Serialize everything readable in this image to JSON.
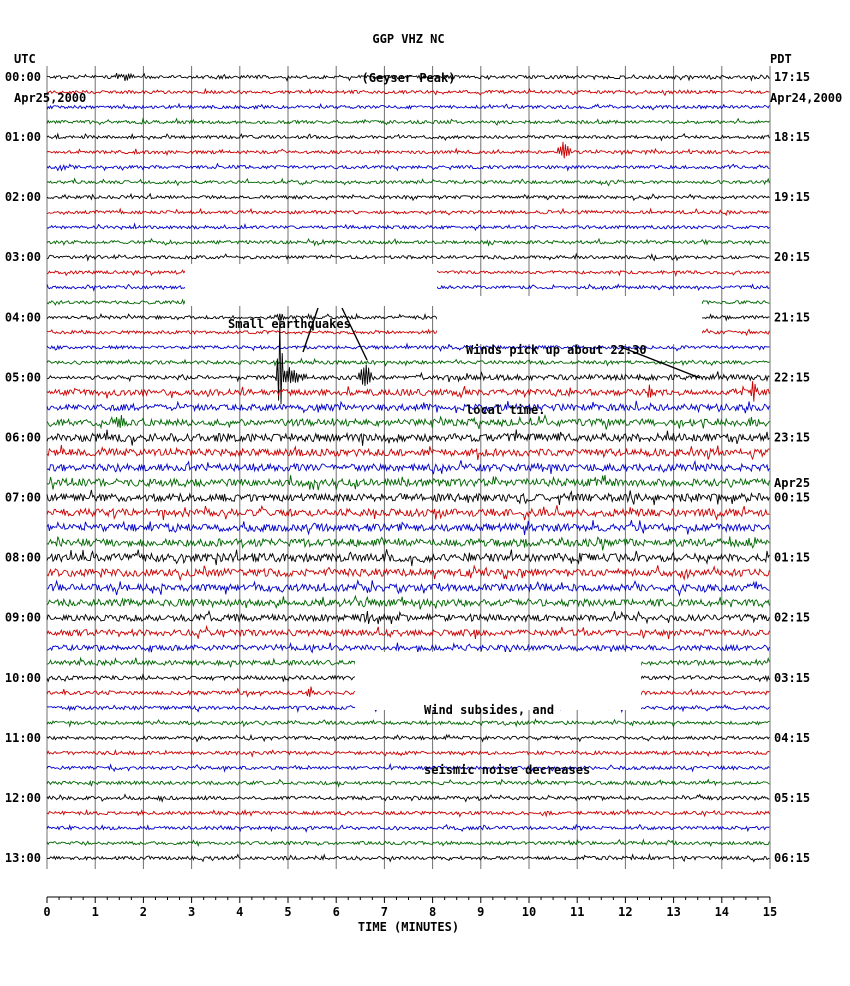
{
  "header": {
    "title": "GGP VHZ NC",
    "subtitle": "(Geyser Peak)",
    "left_tz": "UTC",
    "left_date": "Apr25,2000",
    "right_tz": "PDT",
    "right_date": "Apr24,2000"
  },
  "chart_data": {
    "type": "line",
    "subtype": "helicorder-seismogram",
    "title": "GGP VHZ NC (Geyser Peak)",
    "x_axis": {
      "label": "TIME (MINUTES)",
      "min": 0,
      "max": 15,
      "tick_labels": [
        "0",
        "1",
        "2",
        "3",
        "4",
        "5",
        "6",
        "7",
        "8",
        "9",
        "10",
        "11",
        "12",
        "13",
        "14",
        "15"
      ]
    },
    "trace_colors": [
      "#000000",
      "#cc0000",
      "#0000cc",
      "#006600"
    ],
    "traces_per_hour": 4,
    "minutes_per_trace": 15,
    "num_traces": 53,
    "left_time_labels": [
      "00:00",
      "01:00",
      "02:00",
      "03:00",
      "04:00",
      "05:00",
      "06:00",
      "07:00",
      "08:00",
      "09:00",
      "10:00",
      "11:00",
      "12:00",
      "13:00"
    ],
    "right_time_labels": [
      "17:15",
      "18:15",
      "19:15",
      "20:15",
      "21:15",
      "22:15",
      "23:15",
      "00:15",
      "01:15",
      "02:15",
      "03:15",
      "04:15",
      "05:15",
      "06:15"
    ],
    "right_date_label": "Apr25",
    "row_amplitudes": [
      [
        1.7,
        1.7
      ],
      [
        1.6,
        1.6
      ],
      [
        1.6,
        1.6
      ],
      [
        1.6,
        1.6
      ],
      [
        1.6,
        1.6
      ],
      [
        1.6,
        1.6
      ],
      [
        1.6,
        1.6
      ],
      [
        1.6,
        1.6
      ],
      [
        1.6,
        1.6
      ],
      [
        1.6,
        1.6
      ],
      [
        1.6,
        1.6
      ],
      [
        1.6,
        1.6
      ],
      [
        1.6,
        1.6
      ],
      [
        1.6,
        1.6
      ],
      [
        1.6,
        1.6
      ],
      [
        1.6,
        1.6
      ],
      [
        1.6,
        1.6
      ],
      [
        1.6,
        1.6
      ],
      [
        1.6,
        1.7
      ],
      [
        1.7,
        1.7
      ],
      [
        1.7,
        3.0
      ],
      [
        2.9,
        3.1
      ],
      [
        3.1,
        3.3
      ],
      [
        3.3,
        3.6
      ],
      [
        4.2,
        3.8
      ],
      [
        3.6,
        3.6
      ],
      [
        3.5,
        3.6
      ],
      [
        3.7,
        3.8
      ],
      [
        3.9,
        4.0
      ],
      [
        3.8,
        3.8
      ],
      [
        3.7,
        3.7
      ],
      [
        3.8,
        3.8
      ],
      [
        4.1,
        4.0
      ],
      [
        3.8,
        3.7
      ],
      [
        3.6,
        3.6
      ],
      [
        3.5,
        3.5
      ],
      [
        3.4,
        3.3
      ],
      [
        3.1,
        3.0
      ],
      [
        2.7,
        2.6
      ],
      [
        2.5,
        2.3
      ],
      [
        2.1,
        2.0
      ],
      [
        1.9,
        1.9
      ],
      [
        1.8,
        1.8
      ],
      [
        1.8,
        1.8
      ],
      [
        1.7,
        1.7
      ],
      [
        1.7,
        1.7
      ],
      [
        1.7,
        1.7
      ],
      [
        1.7,
        1.7
      ],
      [
        1.8,
        1.8
      ],
      [
        1.7,
        1.7
      ],
      [
        1.7,
        1.7
      ],
      [
        1.6,
        1.6
      ],
      [
        1.7,
        1.7
      ]
    ],
    "events": [
      {
        "row": 0,
        "minute": 1.65,
        "amp": 3.5,
        "width": 5
      },
      {
        "row": 5,
        "minute": 10.72,
        "amp": 9,
        "width": 4
      },
      {
        "row": 16,
        "minute": 4.85,
        "amp": 4.5,
        "width": 3
      },
      {
        "row": 16,
        "minute": 5.45,
        "amp": 3.5,
        "width": 3
      },
      {
        "row": 20,
        "minute": 4.83,
        "amp": 55,
        "width": 1.6
      },
      {
        "row": 20,
        "minute": 5.05,
        "amp": 9,
        "width": 7
      },
      {
        "row": 20,
        "minute": 6.6,
        "amp": 13,
        "width": 3.5
      },
      {
        "row": 21,
        "minute": 12.52,
        "amp": 7,
        "width": 2
      },
      {
        "row": 21,
        "minute": 14.65,
        "amp": 9,
        "width": 2.5
      },
      {
        "row": 23,
        "minute": 1.47,
        "amp": 6.5,
        "width": 4
      },
      {
        "row": 41,
        "minute": 5.45,
        "amp": 5,
        "width": 3
      }
    ],
    "annotations": [
      {
        "name": "small-earthquakes",
        "lines": [
          "Small earthquakes"
        ],
        "pointers": [
          [
            318,
            308,
            303,
            352
          ],
          [
            342,
            308,
            367,
            360
          ]
        ]
      },
      {
        "name": "wind-pickup",
        "lines": [
          "Winds pick up about 22:30",
          "local time."
        ],
        "pointers": [
          [
            621,
            347,
            700,
            378
          ]
        ]
      },
      {
        "name": "wind-subsides",
        "lines": [
          "Wind subsides, and",
          "seismic noise decreases"
        ],
        "pointers": []
      }
    ]
  }
}
